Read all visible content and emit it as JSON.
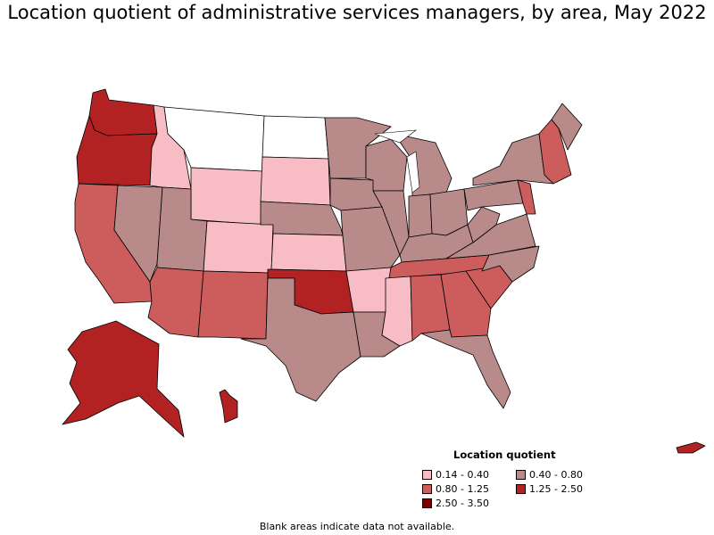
{
  "title": "Location quotient of administrative services managers, by area, May 2022",
  "legend": {
    "title": "Location quotient",
    "items": [
      {
        "label": "0.14 - 0.40",
        "color": "#f8bcc4"
      },
      {
        "label": "0.40 - 0.80",
        "color": "#b88a8a"
      },
      {
        "label": "0.80 - 1.25",
        "color": "#cd5c5c"
      },
      {
        "label": "1.25 - 2.50",
        "color": "#b22222"
      },
      {
        "label": "2.50 - 3.50",
        "color": "#7a0000"
      }
    ]
  },
  "note": "Blank areas indicate data not available.",
  "map": {
    "state_colors": {
      "WA": "#b22222",
      "OR": "#b22222",
      "CA": "#cd5c5c",
      "NV": "#b88a8a",
      "ID": "#f8bcc4",
      "MT": "#ffffff",
      "WY": "#f8bcc4",
      "UT": "#b88a8a",
      "CO": "#f8bcc4",
      "AZ": "#cd5c5c",
      "NM": "#cd5c5c",
      "ND": "#ffffff",
      "SD": "#f8bcc4",
      "NE": "#b88a8a",
      "KS": "#f8bcc4",
      "OK": "#b22222",
      "TX": "#b88a8a",
      "MN": "#b88a8a",
      "IA": "#b88a8a",
      "MO": "#b88a8a",
      "AR": "#f8bcc4",
      "LA": "#b88a8a",
      "WI": "#b88a8a",
      "IL": "#b88a8a",
      "MI": "#b88a8a",
      "IN": "#b88a8a",
      "OH": "#b88a8a",
      "KY": "#b88a8a",
      "TN": "#cd5c5c",
      "MS": "#f8bcc4",
      "AL": "#cd5c5c",
      "GA": "#cd5c5c",
      "FL": "#b88a8a",
      "SC": "#cd5c5c",
      "NC": "#b88a8a",
      "VA": "#b88a8a",
      "WV": "#b88a8a",
      "PA": "#b88a8a",
      "NY": "#b88a8a",
      "NE_REGION": "#cd5c5c",
      "ME": "#b88a8a",
      "AK": "#b22222",
      "HI": "#b22222",
      "PR": "#b22222"
    }
  }
}
